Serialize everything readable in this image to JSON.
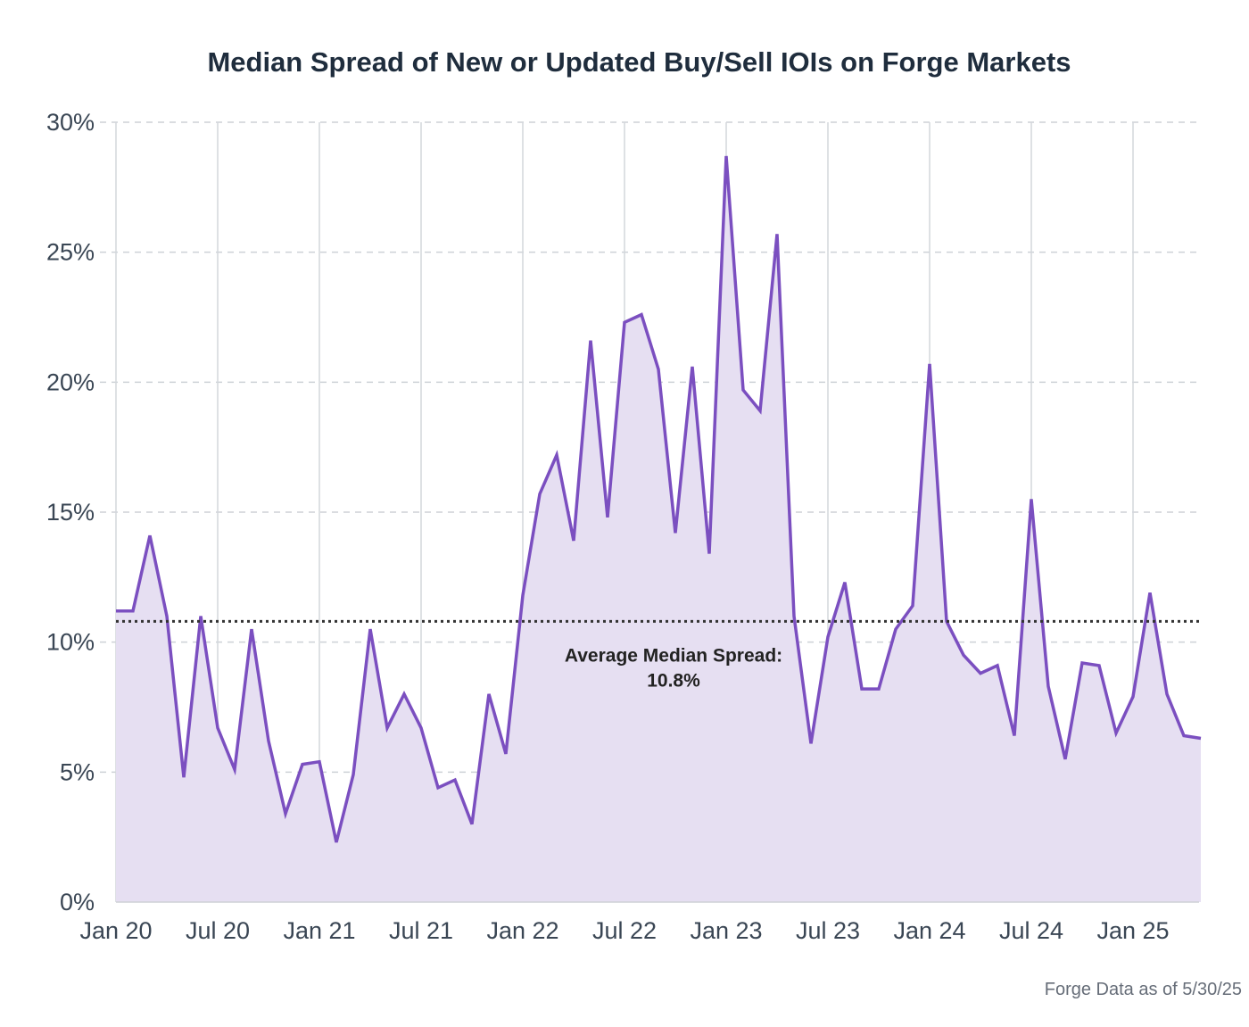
{
  "chart_data": {
    "type": "area",
    "title": "Median Spread of New or Updated Buy/Sell IOIs on Forge Markets",
    "xlabel": "",
    "ylabel": "",
    "ylim": [
      0,
      30
    ],
    "y_ticks": [
      "0%",
      "5%",
      "10%",
      "15%",
      "20%",
      "25%",
      "30%"
    ],
    "x_ticks": [
      "Jan 20",
      "Jul 20",
      "Jan 21",
      "Jul 21",
      "Jan 22",
      "Jul 22",
      "Jan 23",
      "Jul 23",
      "Jan 24",
      "Jul 24",
      "Jan 25"
    ],
    "grid": true,
    "series": [
      {
        "color": "#7b4fc0",
        "fill": "#e6dff2",
        "x": [
          "Jan 20",
          "Feb 20",
          "Mar 20",
          "Apr 20",
          "May 20",
          "Jun 20",
          "Jul 20",
          "Aug 20",
          "Sep 20",
          "Oct 20",
          "Nov 20",
          "Dec 20",
          "Jan 21",
          "Feb 21",
          "Mar 21",
          "Apr 21",
          "May 21",
          "Jun 21",
          "Jul 21",
          "Aug 21",
          "Sep 21",
          "Oct 21",
          "Nov 21",
          "Dec 21",
          "Jan 22",
          "Feb 22",
          "Mar 22",
          "Apr 22",
          "May 22",
          "Jun 22",
          "Jul 22",
          "Aug 22",
          "Sep 22",
          "Oct 22",
          "Nov 22",
          "Dec 22",
          "Jan 23",
          "Feb 23",
          "Mar 23",
          "Apr 23",
          "May 23",
          "Jun 23",
          "Jul 23",
          "Aug 23",
          "Sep 23",
          "Oct 23",
          "Nov 23",
          "Dec 23",
          "Jan 24",
          "Feb 24",
          "Mar 24",
          "Apr 24",
          "May 24",
          "Jun 24",
          "Jul 24",
          "Aug 24",
          "Sep 24",
          "Oct 24",
          "Nov 24",
          "Dec 24",
          "Jan 25",
          "Feb 25",
          "Mar 25",
          "Apr 25",
          "May 25"
        ],
        "values": [
          11.2,
          11.2,
          14.1,
          11.0,
          4.8,
          11.0,
          6.7,
          5.1,
          10.5,
          6.2,
          3.4,
          5.3,
          5.4,
          2.3,
          4.9,
          10.5,
          6.7,
          8.0,
          6.7,
          4.4,
          4.7,
          3.0,
          8.0,
          5.7,
          11.8,
          15.7,
          17.2,
          13.9,
          21.6,
          14.8,
          22.3,
          22.6,
          20.5,
          14.2,
          20.6,
          13.4,
          28.7,
          19.7,
          18.9,
          25.7,
          11.0,
          6.1,
          10.2,
          12.3,
          8.2,
          8.2,
          10.5,
          11.4,
          20.7,
          10.8,
          9.5,
          8.8,
          9.1,
          6.4,
          15.5,
          8.3,
          5.5,
          9.2,
          9.1,
          6.5,
          7.9,
          11.9,
          8.0,
          6.4,
          6.3
        ]
      }
    ],
    "reference_line": {
      "value": 10.8,
      "label_line1": "Average Median Spread:",
      "label_line2": "10.8%",
      "style": "dotted",
      "color": "#333333"
    }
  },
  "footer": {
    "source": "Forge Data as of 5/30/25"
  }
}
